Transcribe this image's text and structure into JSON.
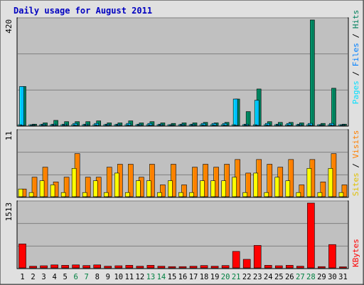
{
  "title": "Daily usage for August 2011",
  "colors": {
    "hits": "#00805c",
    "files": "#00c0ff",
    "pages": "#00e0ff",
    "visits": "#ff8000",
    "sites": "#ffff00",
    "kbytes": "#ff0000",
    "plot_bg": "#c0c0c0",
    "frame_bg": "#e0e0e0",
    "title_color": "#0000c0",
    "weekend_label": "#008040"
  },
  "chart_data": [
    {
      "type": "bar",
      "panel": "hits-files-pages",
      "ymax_label": "420",
      "ylim": [
        0,
        420
      ],
      "legend": [
        "Pages",
        "Files",
        "Hits"
      ],
      "categories": [
        "1",
        "2",
        "3",
        "4",
        "5",
        "6",
        "7",
        "8",
        "9",
        "10",
        "11",
        "12",
        "13",
        "14",
        "15",
        "16",
        "17",
        "18",
        "19",
        "20",
        "21",
        "22",
        "23",
        "24",
        "25",
        "26",
        "27",
        "28",
        "29",
        "30",
        "31"
      ],
      "series": [
        {
          "name": "Hits",
          "values": [
            155,
            5,
            10,
            20,
            15,
            15,
            15,
            18,
            10,
            10,
            18,
            10,
            15,
            10,
            8,
            10,
            10,
            12,
            10,
            12,
            105,
            55,
            145,
            15,
            12,
            12,
            10,
            420,
            8,
            148,
            5
          ]
        },
        {
          "name": "Files",
          "values": [
            155,
            2,
            5,
            5,
            5,
            8,
            5,
            8,
            5,
            5,
            8,
            5,
            8,
            5,
            3,
            5,
            5,
            8,
            8,
            8,
            105,
            5,
            100,
            8,
            5,
            8,
            5,
            8,
            3,
            8,
            3
          ]
        },
        {
          "name": "Pages",
          "values": [
            2,
            1,
            2,
            2,
            2,
            2,
            2,
            2,
            1,
            1,
            2,
            1,
            2,
            1,
            1,
            1,
            1,
            2,
            1,
            2,
            2,
            1,
            2,
            1,
            1,
            1,
            1,
            2,
            1,
            2,
            1
          ]
        }
      ]
    },
    {
      "type": "bar",
      "panel": "visits-sites",
      "ymax_label": "11",
      "ylim": [
        0,
        11
      ],
      "legend": [
        "Sites",
        "Visits"
      ],
      "categories": [
        "1",
        "2",
        "3",
        "4",
        "5",
        "6",
        "7",
        "8",
        "9",
        "10",
        "11",
        "12",
        "13",
        "14",
        "15",
        "16",
        "17",
        "18",
        "19",
        "20",
        "21",
        "22",
        "23",
        "24",
        "25",
        "26",
        "27",
        "28",
        "29",
        "30",
        "31"
      ],
      "series": [
        {
          "name": "Visits",
          "values": [
            1.3,
            3.3,
            5,
            2.5,
            3.3,
            7.3,
            3.3,
            3.3,
            5,
            5.5,
            5.5,
            3.3,
            5.5,
            2.0,
            5.5,
            2.0,
            5,
            5.5,
            5,
            5.5,
            6.3,
            4.0,
            6.3,
            5.5,
            5,
            6.3,
            2.0,
            6.3,
            2.5,
            7.3,
            2.0
          ]
        },
        {
          "name": "Sites",
          "values": [
            1.3,
            0.7,
            2.7,
            2.0,
            0.7,
            4.8,
            0.7,
            2.7,
            0.7,
            4.0,
            0.7,
            2.7,
            2.7,
            0.7,
            2.7,
            0.7,
            0.7,
            2.7,
            2.7,
            2.7,
            3.3,
            0.7,
            4.0,
            0.7,
            3.3,
            2.7,
            0.7,
            4.8,
            0.7,
            4.8,
            0.7
          ]
        }
      ]
    },
    {
      "type": "bar",
      "panel": "kbytes",
      "ymax_label": "1513",
      "ylim": [
        0,
        1513
      ],
      "legend": [
        "KBytes"
      ],
      "categories": [
        "1",
        "2",
        "3",
        "4",
        "5",
        "6",
        "7",
        "8",
        "9",
        "10",
        "11",
        "12",
        "13",
        "14",
        "15",
        "16",
        "17",
        "18",
        "19",
        "20",
        "21",
        "22",
        "23",
        "24",
        "25",
        "26",
        "27",
        "28",
        "29",
        "30",
        "31"
      ],
      "series": [
        {
          "name": "KBytes",
          "values": [
            560,
            40,
            50,
            70,
            60,
            70,
            55,
            70,
            40,
            50,
            60,
            40,
            60,
            40,
            30,
            30,
            40,
            55,
            40,
            55,
            385,
            200,
            525,
            60,
            50,
            60,
            40,
            1513,
            30,
            545,
            25
          ]
        }
      ]
    }
  ],
  "weekend_days": [
    "6",
    "7",
    "13",
    "14",
    "20",
    "21",
    "27",
    "28"
  ]
}
